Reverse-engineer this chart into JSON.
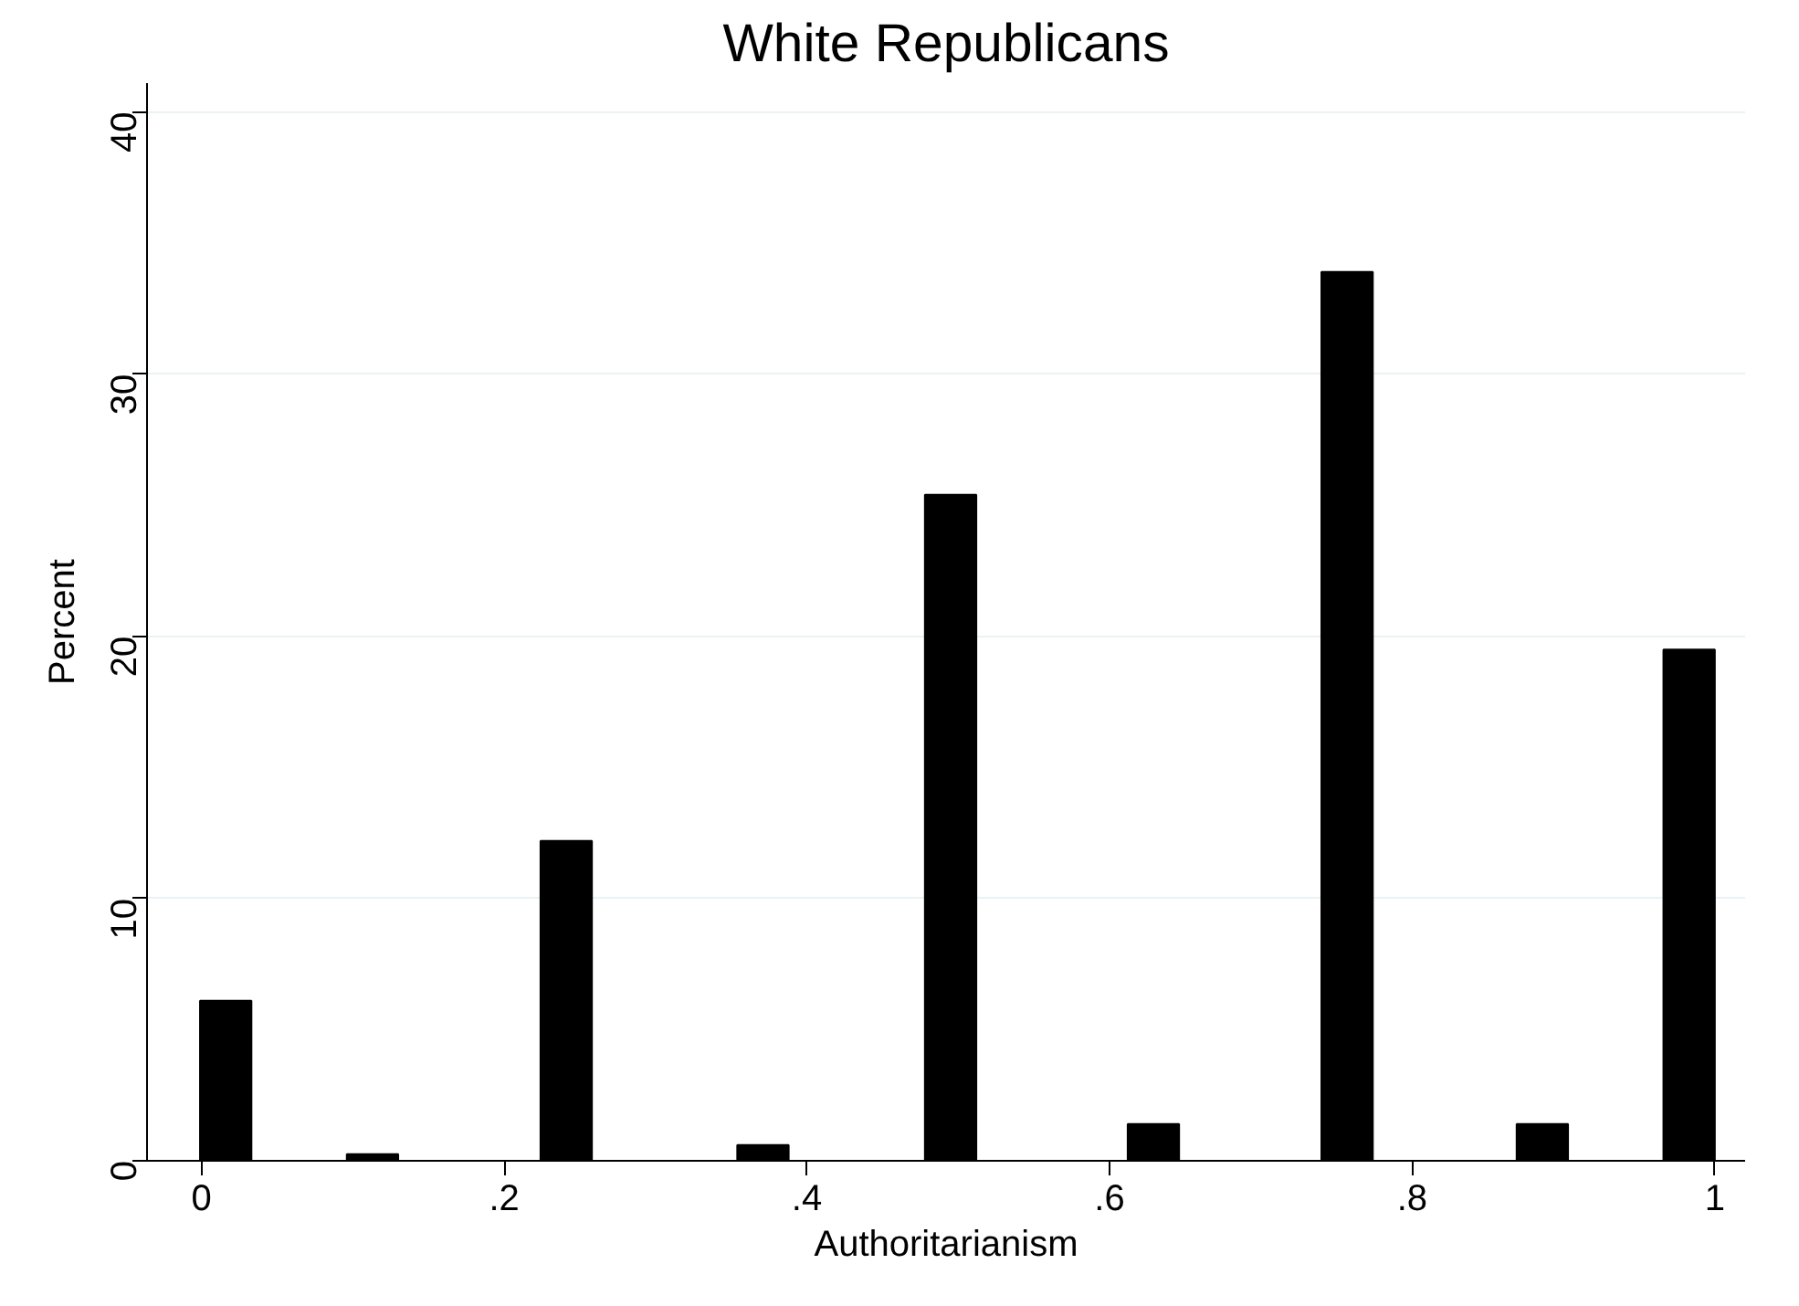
{
  "chart_data": {
    "type": "bar",
    "title": "White Republicans",
    "xlabel": "Authoritarianism",
    "ylabel": "Percent",
    "x": [
      0.016,
      0.113,
      0.241,
      0.371,
      0.495,
      0.629,
      0.757,
      0.886,
      0.983
    ],
    "values": [
      6.1,
      0.25,
      12.2,
      0.6,
      25.4,
      1.4,
      33.9,
      1.4,
      19.5
    ],
    "color": "#000000",
    "xlim": [
      -0.036,
      1.02
    ],
    "ylim": [
      0,
      41.1
    ],
    "xticks": [
      0,
      {
        "value": 0.2,
        "label": ".2"
      },
      {
        "value": 0.4,
        "label": ".4"
      },
      {
        "value": 0.6,
        "label": ".6"
      },
      {
        "value": 0.8,
        "label": ".8"
      },
      1
    ],
    "yticks": [
      0,
      10,
      20,
      30,
      40
    ],
    "grid": "y"
  }
}
